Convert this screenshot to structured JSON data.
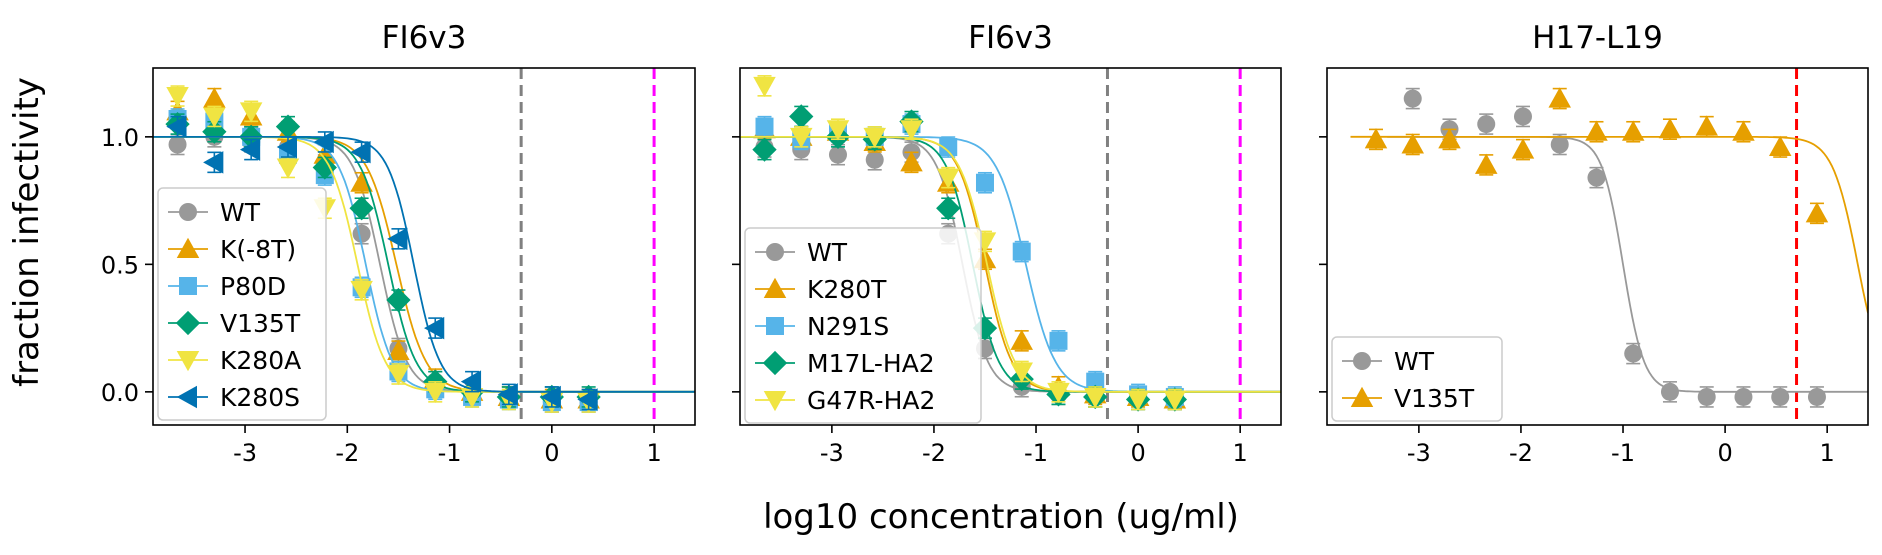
{
  "figure": {
    "ylabel": "fraction infectivity",
    "xlabel": "log10 concentration (ug/ml)"
  },
  "chart_data": [
    {
      "type": "line",
      "title": "FI6v3",
      "xlim": [
        -3.9,
        1.4
      ],
      "ylim": [
        -0.13,
        1.27
      ],
      "xticks": [
        -3,
        -2,
        -1,
        0,
        1
      ],
      "yticks": [
        0.0,
        0.5,
        1.0
      ],
      "ytick_labels": [
        "0.0",
        "0.5",
        "1.0"
      ],
      "vlines": [
        {
          "x": -0.3,
          "color": "#808080"
        },
        {
          "x": 1.0,
          "color": "#ff00ff"
        }
      ],
      "legend": "left",
      "series": [
        {
          "name": "WT",
          "color": "#999999",
          "marker": "circle",
          "ic50": -1.68,
          "hill": 3.3,
          "x": [
            -3.66,
            -3.3,
            -2.94,
            -2.58,
            -2.22,
            -1.86,
            -1.5,
            -1.14,
            -0.78,
            -0.42,
            0.0,
            0.36
          ],
          "y": [
            0.97,
            1.0,
            0.98,
            0.96,
            0.89,
            0.62,
            0.17,
            0.04,
            -0.01,
            -0.02,
            -0.04,
            -0.04
          ]
        },
        {
          "name": "K(-8T)",
          "color": "#E69F00",
          "marker": "triangle-up",
          "ic50": -1.52,
          "hill": 3.0,
          "x": [
            -3.66,
            -3.3,
            -2.94,
            -2.58,
            -2.22,
            -1.86,
            -1.5,
            -1.14,
            -0.78,
            -0.42,
            0.0,
            0.36
          ],
          "y": [
            1.1,
            1.15,
            1.08,
            1.02,
            0.93,
            0.82,
            0.16,
            0.05,
            0.0,
            -0.02,
            -0.03,
            -0.03
          ]
        },
        {
          "name": "P80D",
          "color": "#56B4E9",
          "marker": "square",
          "ic50": -1.82,
          "hill": 3.3,
          "x": [
            -3.66,
            -3.3,
            -2.94,
            -2.58,
            -2.22,
            -1.86,
            -1.5,
            -1.14,
            -0.78,
            -0.42,
            0.0,
            0.36
          ],
          "y": [
            1.07,
            1.06,
            1.0,
            0.93,
            0.85,
            0.41,
            0.08,
            0.01,
            -0.02,
            -0.03,
            -0.04,
            -0.04
          ]
        },
        {
          "name": "V135T",
          "color": "#009E73",
          "marker": "diamond",
          "ic50": -1.6,
          "hill": 3.2,
          "x": [
            -3.66,
            -3.3,
            -2.94,
            -2.58,
            -2.22,
            -1.86,
            -1.5,
            -1.14,
            -0.78,
            -0.42,
            0.0,
            0.36
          ],
          "y": [
            1.05,
            1.02,
            1.0,
            1.04,
            0.88,
            0.72,
            0.36,
            0.04,
            0.0,
            -0.02,
            -0.02,
            -0.02
          ]
        },
        {
          "name": "K280A",
          "color": "#F0E442",
          "marker": "triangle-down",
          "ic50": -1.9,
          "hill": 3.2,
          "x": [
            -3.66,
            -3.3,
            -2.94,
            -2.58,
            -2.22,
            -1.86,
            -1.5,
            -1.14,
            -0.78,
            -0.42,
            0.0,
            0.36
          ],
          "y": [
            1.16,
            1.08,
            1.1,
            0.88,
            0.72,
            0.4,
            0.07,
            0.0,
            -0.02,
            -0.03,
            -0.04,
            -0.04
          ]
        },
        {
          "name": "K280S",
          "color": "#0072B2",
          "marker": "triangle-left",
          "ic50": -1.35,
          "hill": 3.4,
          "x": [
            -3.66,
            -3.3,
            -2.94,
            -2.58,
            -2.22,
            -1.86,
            -1.5,
            -1.14,
            -0.78,
            -0.42,
            0.0,
            0.36
          ],
          "y": [
            1.04,
            0.9,
            0.95,
            0.96,
            0.98,
            0.94,
            0.6,
            0.25,
            0.04,
            -0.01,
            -0.02,
            -0.03
          ]
        }
      ]
    },
    {
      "type": "line",
      "title": "FI6v3",
      "xlim": [
        -3.9,
        1.4
      ],
      "ylim": [
        -0.13,
        1.27
      ],
      "xticks": [
        -3,
        -2,
        -1,
        0,
        1
      ],
      "yticks": [
        0.0,
        0.5,
        1.0
      ],
      "ytick_labels": [
        "",
        "",
        ""
      ],
      "vlines": [
        {
          "x": -0.3,
          "color": "#808080"
        },
        {
          "x": 1.0,
          "color": "#ff00ff"
        }
      ],
      "legend": "left",
      "series": [
        {
          "name": "WT",
          "color": "#999999",
          "marker": "circle",
          "ic50": -1.72,
          "hill": 3.5,
          "x": [
            -3.66,
            -3.3,
            -2.94,
            -2.58,
            -2.22,
            -1.86,
            -1.5,
            -1.14,
            -0.78,
            -0.42,
            0.0,
            0.36
          ],
          "y": [
            0.96,
            0.95,
            0.93,
            0.91,
            0.94,
            0.62,
            0.17,
            0.02,
            -0.01,
            -0.02,
            -0.03,
            -0.03
          ]
        },
        {
          "name": "K280T",
          "color": "#E69F00",
          "marker": "triangle-up",
          "ic50": -1.5,
          "hill": 3.3,
          "x": [
            -3.66,
            -3.3,
            -2.94,
            -2.58,
            -2.22,
            -1.86,
            -1.5,
            -1.14,
            -0.78,
            -0.42,
            0.0,
            0.36
          ],
          "y": [
            1.03,
            1.0,
            1.02,
            0.98,
            0.9,
            0.82,
            0.52,
            0.2,
            0.02,
            -0.01,
            -0.02,
            -0.03
          ]
        },
        {
          "name": "N291S",
          "color": "#56B4E9",
          "marker": "square",
          "ic50": -1.1,
          "hill": 3.0,
          "x": [
            -3.66,
            -3.3,
            -2.94,
            -2.58,
            -2.22,
            -1.86,
            -1.5,
            -1.14,
            -0.78,
            -0.42,
            0.0,
            0.36
          ],
          "y": [
            1.04,
            0.99,
            1.02,
            1.0,
            1.05,
            0.96,
            0.82,
            0.55,
            0.2,
            0.04,
            -0.01,
            -0.02
          ]
        },
        {
          "name": "M17L-HA2",
          "color": "#009E73",
          "marker": "diamond",
          "ic50": -1.62,
          "hill": 3.4,
          "x": [
            -3.66,
            -3.3,
            -2.94,
            -2.58,
            -2.22,
            -1.86,
            -1.5,
            -1.14,
            -0.78,
            -0.42,
            0.0,
            0.36
          ],
          "y": [
            0.95,
            1.08,
            1.0,
            0.99,
            1.06,
            0.72,
            0.25,
            0.05,
            -0.01,
            -0.02,
            -0.03,
            -0.03
          ]
        },
        {
          "name": "G47R-HA2",
          "color": "#F0E442",
          "marker": "triangle-down",
          "ic50": -1.48,
          "hill": 3.2,
          "x": [
            -3.66,
            -3.3,
            -2.94,
            -2.58,
            -2.22,
            -1.86,
            -1.5,
            -1.14,
            -0.78,
            -0.42,
            0.0,
            0.36
          ],
          "y": [
            1.2,
            1.0,
            1.03,
            1.0,
            1.03,
            0.84,
            0.59,
            0.08,
            0.0,
            -0.02,
            -0.03,
            -0.03
          ]
        }
      ]
    },
    {
      "type": "line",
      "title": "H17-L19",
      "xlim": [
        -3.9,
        1.4
      ],
      "ylim": [
        -0.13,
        1.27
      ],
      "xticks": [
        -3,
        -2,
        -1,
        0,
        1
      ],
      "yticks": [
        0.0,
        0.5,
        1.0
      ],
      "ytick_labels": [
        "",
        "",
        ""
      ],
      "vlines": [
        {
          "x": 0.7,
          "color": "#ff0000"
        }
      ],
      "legend": "lower-left",
      "series": [
        {
          "name": "WT",
          "color": "#999999",
          "marker": "circle",
          "ic50": -1.0,
          "hill": 4.2,
          "x": [
            -3.06,
            -2.7,
            -2.34,
            -1.98,
            -1.62,
            -1.26,
            -0.9,
            -0.54,
            -0.18,
            0.18,
            0.54,
            0.9
          ],
          "y": [
            1.15,
            1.03,
            1.05,
            1.08,
            0.97,
            0.84,
            0.15,
            0.0,
            -0.02,
            -0.02,
            -0.02,
            -0.02
          ]
        },
        {
          "name": "V135T",
          "color": "#E69F00",
          "marker": "triangle-up",
          "ic50": 1.3,
          "hill": 3.5,
          "x": [
            -3.42,
            -3.06,
            -2.7,
            -2.34,
            -1.98,
            -1.62,
            -1.26,
            -0.9,
            -0.54,
            -0.18,
            0.18,
            0.54,
            0.9
          ],
          "y": [
            0.99,
            0.97,
            0.99,
            0.89,
            0.95,
            1.15,
            1.02,
            1.02,
            1.03,
            1.04,
            1.02,
            0.96,
            0.7
          ]
        }
      ]
    }
  ]
}
